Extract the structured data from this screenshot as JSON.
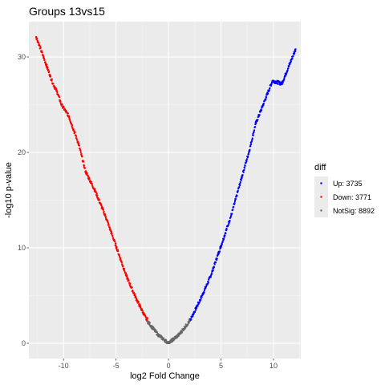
{
  "chart_data": {
    "type": "scatter",
    "title": "Groups 13vs15",
    "xlabel": "log2 Fold Change",
    "ylabel": "-log10 p-value",
    "xlim": [
      -13.3,
      12.6
    ],
    "ylim": [
      -1.6,
      33.7
    ],
    "x_ticks": [
      -10,
      -5,
      0,
      5,
      10
    ],
    "y_ticks": [
      0,
      10,
      20,
      30
    ],
    "x_tick_labels": [
      "-10",
      "-5",
      "0",
      "5",
      "10"
    ],
    "y_tick_labels": [
      "0",
      "10",
      "20",
      "30"
    ],
    "grid": true,
    "legend_position": "right",
    "legend": {
      "title": "diff",
      "entries": [
        {
          "key": "up",
          "label": "Up: 3735",
          "color": "#0000ff"
        },
        {
          "key": "down",
          "label": "Down: 3771",
          "color": "#ff0000"
        },
        {
          "key": "notsig",
          "label": "NotSig: 8892",
          "color": "#666666"
        }
      ]
    },
    "series": [
      {
        "name": "Up: 3735",
        "color": "#0000ff",
        "x_range": [
          2.0,
          12.1
        ],
        "shape": "v-curve",
        "points": [
          [
            2.1,
            2.5
          ],
          [
            3.0,
            4.5
          ],
          [
            4.0,
            7.0
          ],
          [
            5.0,
            10.2
          ],
          [
            6.0,
            13.5
          ],
          [
            7.0,
            17.5
          ],
          [
            7.7,
            20.2
          ],
          [
            8.3,
            23.0
          ],
          [
            9.3,
            25.8
          ],
          [
            9.9,
            27.5
          ],
          [
            10.8,
            27.2
          ],
          [
            12.1,
            30.8
          ]
        ]
      },
      {
        "name": "Down: 3771",
        "color": "#ff0000",
        "x_range": [
          -12.6,
          -2.0
        ],
        "shape": "v-curve",
        "points": [
          [
            -2.1,
            2.5
          ],
          [
            -3.0,
            4.5
          ],
          [
            -4.0,
            7.0
          ],
          [
            -5.0,
            10.2
          ],
          [
            -6.0,
            13.3
          ],
          [
            -7.0,
            16.0
          ],
          [
            -7.9,
            18.0
          ],
          [
            -8.6,
            21.0
          ],
          [
            -9.5,
            23.8
          ],
          [
            -10.2,
            25.0
          ],
          [
            -10.6,
            26.3
          ],
          [
            -11.0,
            27.2
          ],
          [
            -12.6,
            32.1
          ]
        ]
      },
      {
        "name": "NotSig: 8892",
        "color": "#666666",
        "x_range": [
          -2.0,
          2.0
        ],
        "shape": "v-curve",
        "points": [
          [
            -2.0,
            2.3
          ],
          [
            -1.0,
            0.9
          ],
          [
            0.0,
            0.0
          ],
          [
            1.0,
            0.9
          ],
          [
            2.0,
            2.3
          ]
        ]
      }
    ]
  }
}
